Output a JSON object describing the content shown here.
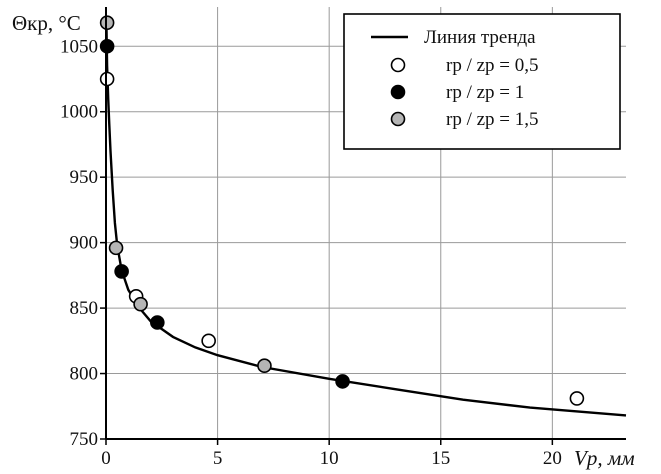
{
  "chart_data": {
    "type": "scatter",
    "ylabel": "Θкр, °C",
    "xlabel": "Vp, мм",
    "xlim": [
      0,
      23.3
    ],
    "ylim": [
      750,
      1080
    ],
    "xticks": [
      0,
      5,
      10,
      15,
      20
    ],
    "yticks": [
      750,
      800,
      850,
      900,
      950,
      1000,
      1050
    ],
    "grid": true,
    "legend_position": "top-right",
    "legend": [
      "Линия тренда",
      "rp / zp = 0,5",
      "rp / zp = 1",
      "rp / zp = 1,5"
    ],
    "trend": {
      "name": "Линия тренда",
      "points": [
        {
          "x": 0.02,
          "y": 1068
        },
        {
          "x": 0.05,
          "y": 1035
        },
        {
          "x": 0.1,
          "y": 1010
        },
        {
          "x": 0.15,
          "y": 990
        },
        {
          "x": 0.2,
          "y": 970
        },
        {
          "x": 0.3,
          "y": 940
        },
        {
          "x": 0.4,
          "y": 915
        },
        {
          "x": 0.5,
          "y": 898
        },
        {
          "x": 0.7,
          "y": 879
        },
        {
          "x": 1.0,
          "y": 864
        },
        {
          "x": 1.5,
          "y": 850
        },
        {
          "x": 2.0,
          "y": 840
        },
        {
          "x": 3.0,
          "y": 828
        },
        {
          "x": 4.0,
          "y": 820
        },
        {
          "x": 5.0,
          "y": 814
        },
        {
          "x": 7.0,
          "y": 805
        },
        {
          "x": 10.0,
          "y": 796
        },
        {
          "x": 13.0,
          "y": 788
        },
        {
          "x": 16.0,
          "y": 780
        },
        {
          "x": 19.0,
          "y": 774
        },
        {
          "x": 23.3,
          "y": 768
        }
      ]
    },
    "series": [
      {
        "name": "rp / zp = 0,5",
        "marker": "open",
        "points": [
          {
            "x": 0.05,
            "y": 1025
          },
          {
            "x": 1.35,
            "y": 859
          },
          {
            "x": 4.6,
            "y": 825
          },
          {
            "x": 21.1,
            "y": 781
          }
        ]
      },
      {
        "name": "rp / zp = 1",
        "marker": "black",
        "points": [
          {
            "x": 0.05,
            "y": 1050
          },
          {
            "x": 0.7,
            "y": 878
          },
          {
            "x": 2.3,
            "y": 839
          },
          {
            "x": 10.6,
            "y": 794
          }
        ]
      },
      {
        "name": "rp / zp = 1,5",
        "marker": "gray",
        "points": [
          {
            "x": 0.05,
            "y": 1068
          },
          {
            "x": 0.45,
            "y": 896
          },
          {
            "x": 1.55,
            "y": 853
          },
          {
            "x": 7.1,
            "y": 806
          }
        ]
      }
    ]
  }
}
